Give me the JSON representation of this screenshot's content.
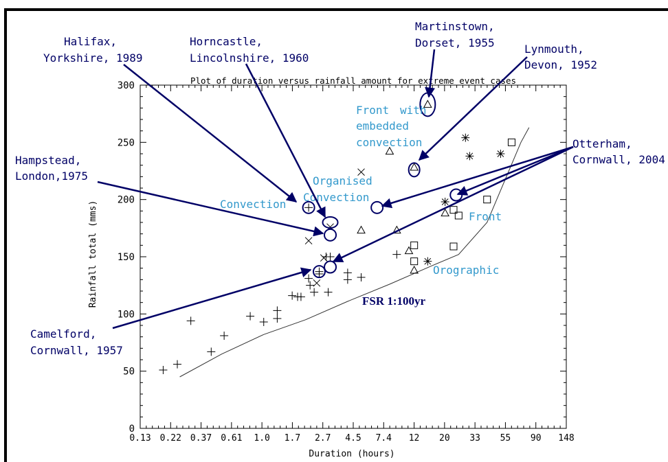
{
  "chart_data": {
    "type": "scatter",
    "title": "Plot of duration versus rainfall amount for extreme event cases",
    "xlabel": "Duration (hours)",
    "ylabel": "Rainfall total (mms)",
    "x_scale": "log",
    "xlim": [
      0.13,
      148
    ],
    "ylim": [
      0,
      300
    ],
    "x_ticks": [
      "0.13",
      "0.22",
      "0.37",
      "0.61",
      "1.0",
      "1.7",
      "2.7",
      "4.5",
      "7.4",
      "12",
      "20",
      "33",
      "55",
      "90",
      "148"
    ],
    "y_ticks": [
      "0",
      "50",
      "100",
      "150",
      "200",
      "250",
      "300"
    ],
    "grid": false,
    "series": [
      {
        "marker": "plus",
        "points": [
          [
            0.19,
            51
          ],
          [
            0.24,
            56
          ],
          [
            0.3,
            94
          ],
          [
            0.42,
            67
          ],
          [
            0.52,
            81
          ],
          [
            0.8,
            98
          ],
          [
            1.0,
            93
          ],
          [
            1.25,
            96
          ],
          [
            1.25,
            103
          ],
          [
            1.6,
            116
          ],
          [
            1.75,
            115
          ],
          [
            1.85,
            115
          ],
          [
            2.1,
            131
          ],
          [
            2.15,
            125
          ],
          [
            2.3,
            119
          ],
          [
            2.5,
            135
          ],
          [
            2.8,
            150
          ],
          [
            2.9,
            119
          ],
          [
            3.0,
            150
          ],
          [
            4.0,
            130
          ],
          [
            4.0,
            136
          ],
          [
            5.0,
            132
          ],
          [
            9.0,
            152
          ],
          [
            2.5,
            137
          ],
          [
            2.1,
            193
          ]
        ]
      },
      {
        "marker": "x",
        "points": [
          [
            2.1,
            164
          ],
          [
            2.4,
            127
          ],
          [
            2.7,
            149
          ],
          [
            5.0,
            224
          ],
          [
            3.0,
            176
          ]
        ]
      },
      {
        "marker": "triangle",
        "points": [
          [
            5.0,
            173
          ],
          [
            8.0,
            242
          ],
          [
            9.0,
            173
          ],
          [
            11.0,
            155
          ],
          [
            12.0,
            138
          ],
          [
            12.0,
            228
          ],
          [
            15.0,
            283
          ],
          [
            20.0,
            188
          ]
        ]
      },
      {
        "marker": "square",
        "points": [
          [
            12.0,
            160
          ],
          [
            12.0,
            146
          ],
          [
            23.0,
            191
          ],
          [
            23.0,
            159
          ],
          [
            25.0,
            186
          ],
          [
            40.0,
            200
          ],
          [
            60.0,
            250
          ]
        ]
      },
      {
        "marker": "asterisk",
        "points": [
          [
            15.0,
            146
          ],
          [
            20.0,
            198
          ],
          [
            28.0,
            254
          ],
          [
            30.0,
            238
          ],
          [
            50.0,
            240
          ]
        ]
      }
    ],
    "fsr_line": {
      "label": "FSR 1:100yr",
      "points": [
        [
          0.25,
          45
        ],
        [
          0.5,
          65
        ],
        [
          1.0,
          82
        ],
        [
          2.0,
          95
        ],
        [
          4.0,
          111
        ],
        [
          8.0,
          126
        ],
        [
          16.0,
          142
        ],
        [
          25.0,
          152
        ],
        [
          40.0,
          180
        ],
        [
          70.0,
          250
        ],
        [
          80.0,
          263
        ]
      ]
    },
    "circled": [
      [
        2.1,
        193
      ],
      [
        3.0,
        180
      ],
      [
        3.0,
        169
      ],
      [
        2.5,
        137
      ],
      [
        3.0,
        141
      ],
      [
        6.5,
        193
      ],
      [
        12.0,
        226
      ],
      [
        15.0,
        283
      ],
      [
        24.0,
        204
      ]
    ],
    "regime_labels": [
      "Convection",
      "Organised",
      "Convection",
      "Front",
      "with",
      "embedded",
      "convection",
      "Front",
      "Orographic"
    ],
    "event_labels": [
      [
        "Halifax,",
        "Yorkshire, 1989"
      ],
      [
        "Horncastle,",
        "Lincolnshire, 1960"
      ],
      [
        "Martinstown,",
        "Dorset, 1955"
      ],
      [
        "Lynmouth,",
        "Devon, 1952"
      ],
      [
        "Hampstead,",
        "London,1975"
      ],
      [
        "Otterham,",
        "Cornwall,  2004"
      ],
      [
        "Camelford,",
        "Cornwall, 1957"
      ]
    ],
    "colors": {
      "event_label": "#000066",
      "regime_label": "#3399cc",
      "arrow": "#000066"
    }
  }
}
